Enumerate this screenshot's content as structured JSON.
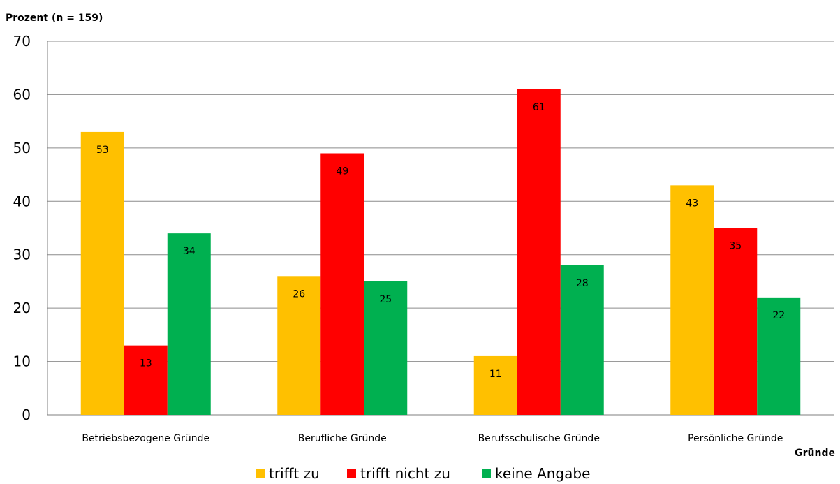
{
  "chart_data": {
    "type": "bar",
    "ylabel": "Prozent  (n = 159)",
    "xlabel": "Gründe",
    "ylim": [
      0,
      70
    ],
    "yticks": [
      0,
      10,
      20,
      30,
      40,
      50,
      60,
      70
    ],
    "grid": true,
    "legend_position": "bottom",
    "categories": [
      "Betriebsbezogene Gründe",
      "Berufliche Gründe",
      "Berufsschulische Gründe",
      "Persönliche Gründe"
    ],
    "series": [
      {
        "name": "trifft zu",
        "color": "#FFC000",
        "values": [
          53,
          26,
          11,
          43
        ]
      },
      {
        "name": "trifft nicht zu",
        "color": "#FF0000",
        "values": [
          13,
          49,
          61,
          35
        ]
      },
      {
        "name": "keine Angabe",
        "color": "#00B050",
        "values": [
          34,
          25,
          28,
          22
        ]
      }
    ]
  }
}
